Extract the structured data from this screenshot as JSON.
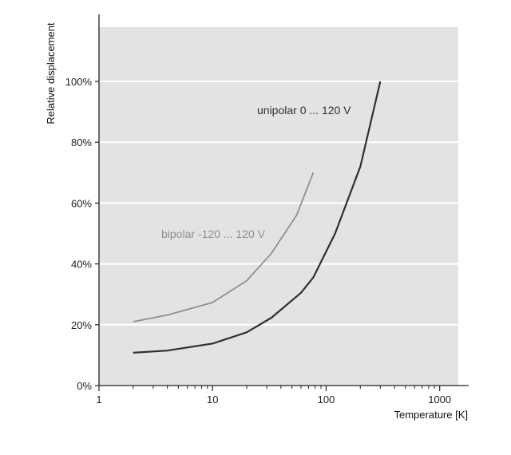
{
  "chart_data": {
    "type": "line",
    "title": "",
    "xlabel": "Temperature [K]",
    "ylabel": "Relative displacement",
    "x_scale": "log",
    "xlim": [
      1,
      1800
    ],
    "ylim": [
      0,
      100
    ],
    "grid": true,
    "grid_axis": "y",
    "x_ticks": [
      1,
      10,
      100,
      1000
    ],
    "x_tick_labels": [
      "1",
      "10",
      "100",
      "1000"
    ],
    "y_ticks": [
      0,
      20,
      40,
      60,
      80,
      100
    ],
    "y_tick_labels": [
      "0%",
      "20%",
      "40%",
      "60%",
      "80%",
      "100%"
    ],
    "plot_background": "#e3e3e3",
    "gridline_color": "#ffffff",
    "series": [
      {
        "name": "bipolar -120 ... 120 V",
        "color": "#8f8f8f",
        "x": [
          2,
          4,
          10,
          20,
          33,
          55,
          77
        ],
        "y": [
          21,
          23.2,
          27.3,
          34.5,
          43.5,
          56,
          70
        ]
      },
      {
        "name": "unipolar 0 ... 120 V",
        "color": "#303030",
        "x": [
          2,
          4,
          10,
          20,
          33,
          60,
          77,
          120,
          200,
          300
        ],
        "y": [
          10.8,
          11.5,
          13.8,
          17.5,
          22.3,
          30.5,
          35.5,
          50,
          72,
          100
        ]
      }
    ]
  }
}
